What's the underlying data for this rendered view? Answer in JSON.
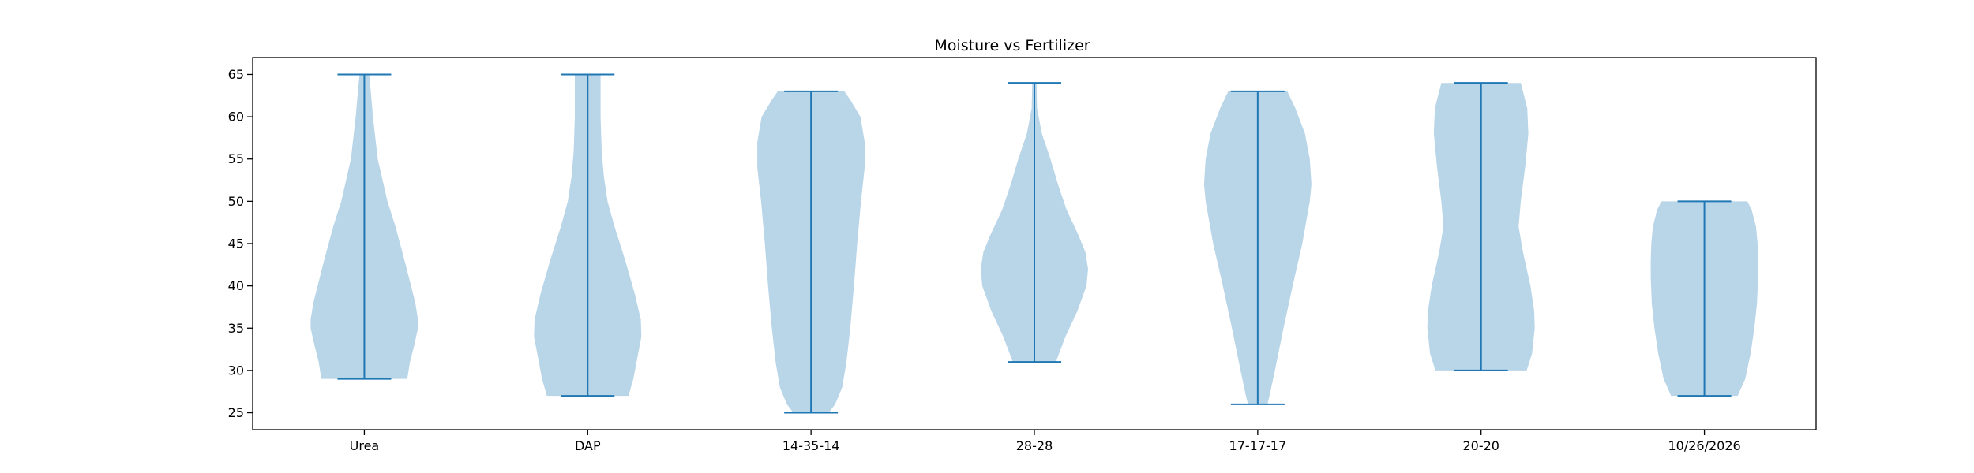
{
  "colors": {
    "violin_fill": "#b9d5e8",
    "violin_line": "#1f77b4",
    "axes": "#000000",
    "background": "#ffffff"
  },
  "chart_data": {
    "type": "violin",
    "title": "Moisture vs Fertilizer",
    "xlabel": "",
    "ylabel": "",
    "ylim": [
      23.0,
      67.0
    ],
    "yticks": [
      25,
      30,
      35,
      40,
      45,
      50,
      55,
      60,
      65
    ],
    "grid": false,
    "categories": [
      "Urea",
      "DAP",
      "14-35-14",
      "28-28",
      "17-17-17",
      "20-20",
      "10/26/2026"
    ],
    "series": [
      {
        "min": 29,
        "max": 65,
        "profile": [
          [
            29,
            0.8
          ],
          [
            31,
            0.85
          ],
          [
            33,
            0.93
          ],
          [
            35,
            1.0
          ],
          [
            36,
            1.0
          ],
          [
            38,
            0.95
          ],
          [
            40,
            0.87
          ],
          [
            43,
            0.75
          ],
          [
            47,
            0.58
          ],
          [
            50,
            0.43
          ],
          [
            55,
            0.25
          ],
          [
            60,
            0.16
          ],
          [
            63,
            0.12
          ],
          [
            65,
            0.09
          ]
        ]
      },
      {
        "min": 27,
        "max": 65,
        "profile": [
          [
            27,
            0.76
          ],
          [
            29,
            0.85
          ],
          [
            32,
            0.94
          ],
          [
            34,
            1.0
          ],
          [
            36,
            0.99
          ],
          [
            39,
            0.88
          ],
          [
            43,
            0.7
          ],
          [
            47,
            0.5
          ],
          [
            50,
            0.37
          ],
          [
            53,
            0.3
          ],
          [
            56,
            0.26
          ],
          [
            60,
            0.24
          ],
          [
            63,
            0.24
          ],
          [
            65,
            0.24
          ]
        ]
      },
      {
        "min": 25,
        "max": 63,
        "profile": [
          [
            25,
            0.33
          ],
          [
            26,
            0.45
          ],
          [
            28,
            0.58
          ],
          [
            31,
            0.66
          ],
          [
            35,
            0.73
          ],
          [
            40,
            0.8
          ],
          [
            45,
            0.86
          ],
          [
            50,
            0.93
          ],
          [
            54,
            1.0
          ],
          [
            57,
            1.0
          ],
          [
            60,
            0.92
          ],
          [
            62,
            0.73
          ],
          [
            63,
            0.62
          ]
        ]
      },
      {
        "min": 31,
        "max": 64,
        "profile": [
          [
            31,
            0.4
          ],
          [
            34,
            0.58
          ],
          [
            37,
            0.8
          ],
          [
            40,
            0.97
          ],
          [
            42,
            1.0
          ],
          [
            44,
            0.95
          ],
          [
            46,
            0.82
          ],
          [
            49,
            0.6
          ],
          [
            52,
            0.44
          ],
          [
            55,
            0.3
          ],
          [
            58,
            0.14
          ],
          [
            61,
            0.05
          ],
          [
            64,
            0.04
          ]
        ]
      },
      {
        "min": 26,
        "max": 63,
        "profile": [
          [
            26,
            0.18
          ],
          [
            27,
            0.22
          ],
          [
            30,
            0.32
          ],
          [
            35,
            0.48
          ],
          [
            40,
            0.65
          ],
          [
            45,
            0.83
          ],
          [
            50,
            0.97
          ],
          [
            52,
            1.0
          ],
          [
            55,
            0.97
          ],
          [
            58,
            0.88
          ],
          [
            61,
            0.7
          ],
          [
            63,
            0.55
          ]
        ]
      },
      {
        "min": 30,
        "max": 64,
        "profile": [
          [
            30,
            0.85
          ],
          [
            32,
            0.95
          ],
          [
            35,
            1.0
          ],
          [
            37,
            0.99
          ],
          [
            40,
            0.92
          ],
          [
            44,
            0.78
          ],
          [
            47,
            0.7
          ],
          [
            50,
            0.74
          ],
          [
            54,
            0.82
          ],
          [
            58,
            0.88
          ],
          [
            61,
            0.86
          ],
          [
            63,
            0.78
          ],
          [
            64,
            0.74
          ]
        ]
      },
      {
        "min": 27,
        "max": 50,
        "profile": [
          [
            27,
            0.62
          ],
          [
            29,
            0.76
          ],
          [
            32,
            0.86
          ],
          [
            35,
            0.93
          ],
          [
            38,
            0.98
          ],
          [
            41,
            1.0
          ],
          [
            43,
            1.0
          ],
          [
            45,
            0.99
          ],
          [
            47,
            0.96
          ],
          [
            49,
            0.88
          ],
          [
            50,
            0.8
          ]
        ]
      }
    ]
  }
}
